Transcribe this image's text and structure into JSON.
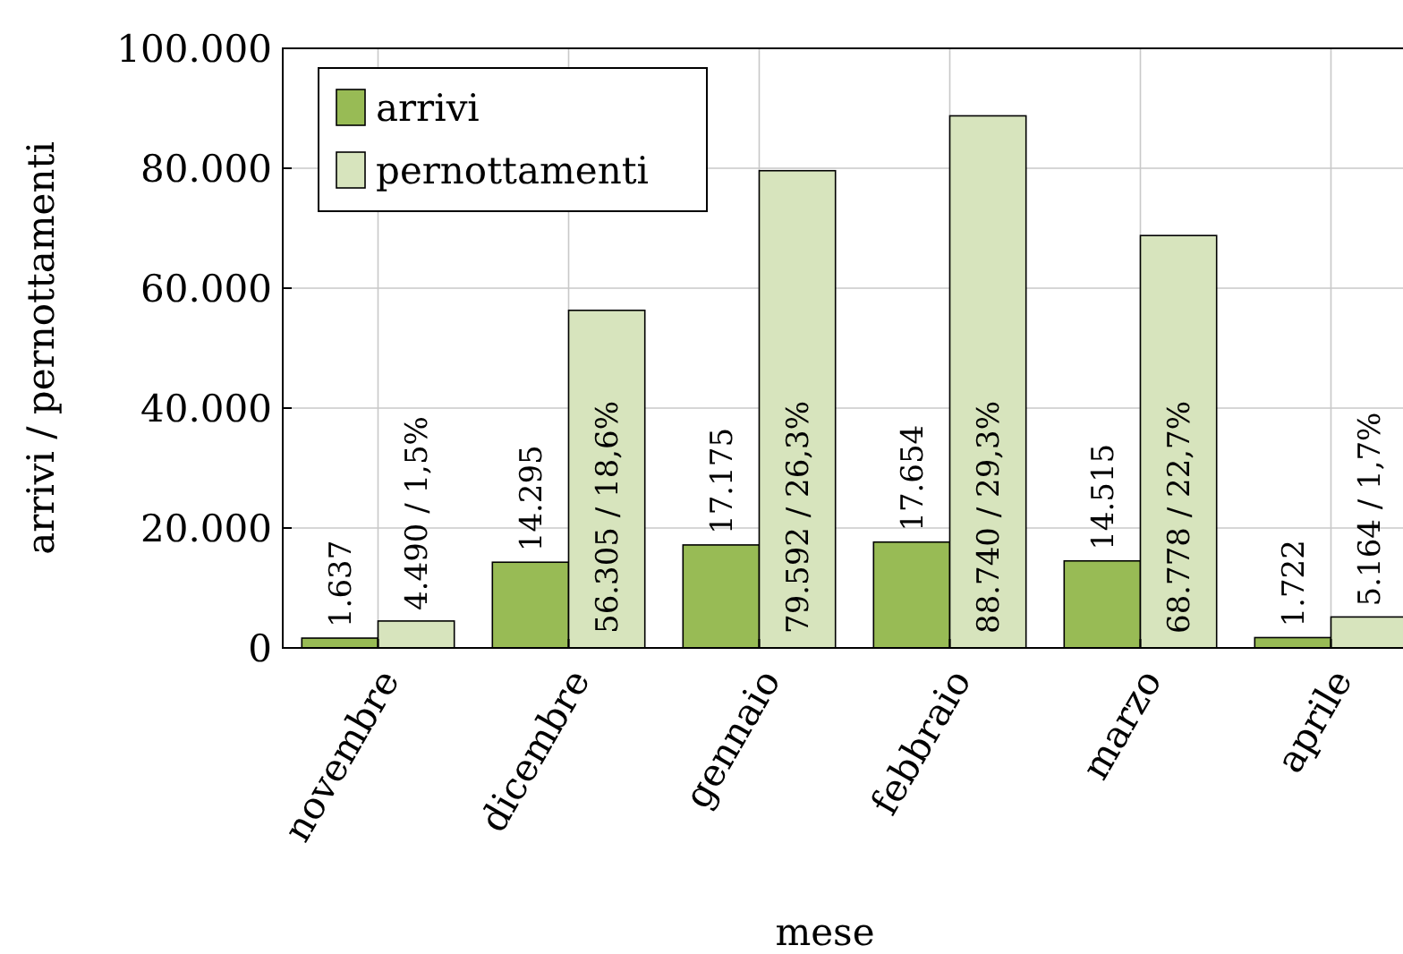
{
  "chart_data": {
    "type": "bar",
    "xlabel": "mese",
    "ylabel": "arrivi / pernottamenti",
    "categories": [
      "novembre",
      "dicembre",
      "gennaio",
      "febbraio",
      "marzo",
      "aprile"
    ],
    "series": [
      {
        "name": "arrivi",
        "color": "#98bb55",
        "values": [
          1637,
          14295,
          17175,
          17654,
          14515,
          1722
        ],
        "value_labels": [
          "1.637",
          "14.295",
          "17.175",
          "17.654",
          "14.515",
          "1.722"
        ]
      },
      {
        "name": "pernottamenti",
        "color": "#d7e4bd",
        "values": [
          4490,
          56305,
          79592,
          88740,
          68778,
          5164
        ],
        "value_labels": [
          "4.490 / 1,5%",
          "56.305 / 18,6%",
          "79.592 / 26,3%",
          "88.740 / 29,3%",
          "68.778 / 22,7%",
          "5.164 / 1,7%"
        ]
      }
    ],
    "ylim": [
      0,
      100000
    ],
    "yticks": [
      {
        "value": 0,
        "label": "0"
      },
      {
        "value": 20000,
        "label": "20.000"
      },
      {
        "value": 40000,
        "label": "40.000"
      },
      {
        "value": 60000,
        "label": "60.000"
      },
      {
        "value": 80000,
        "label": "80.000"
      },
      {
        "value": 100000,
        "label": "100.000"
      }
    ],
    "grid": true,
    "legend": "top left"
  }
}
